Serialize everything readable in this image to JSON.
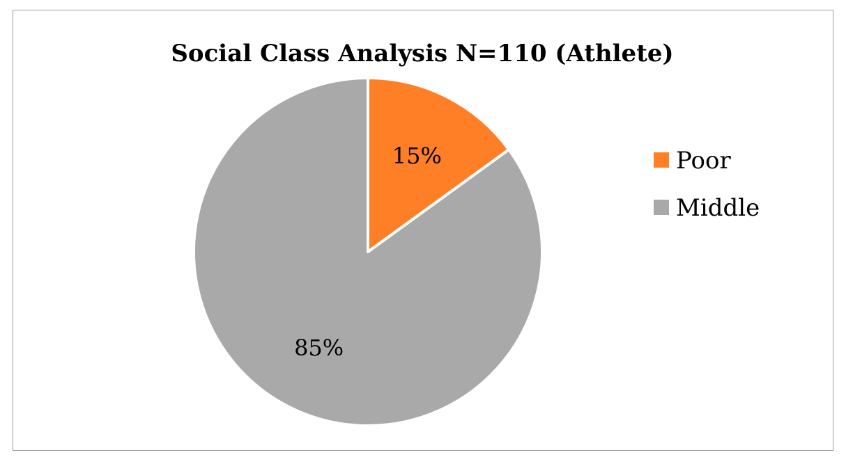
{
  "chart_data": {
    "type": "pie",
    "title": "Social Class Analysis N=110 (Athlete)",
    "categories": [
      "Poor",
      "Middle"
    ],
    "values": [
      15,
      85
    ],
    "labels": [
      "15%",
      "85%"
    ],
    "colors": [
      "#FF7F27",
      "#A9A9A9"
    ],
    "legend_position": "right",
    "start_angle": "12 o'clock",
    "direction": "clockwise"
  }
}
